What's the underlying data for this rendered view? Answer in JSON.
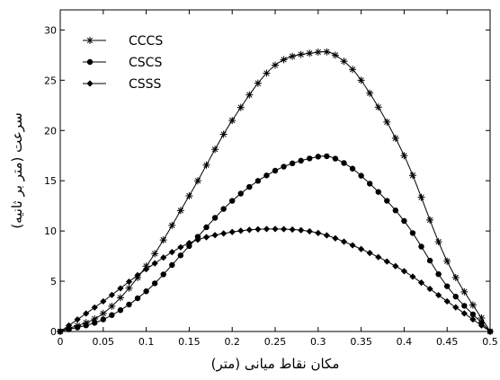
{
  "chart_data": {
    "type": "line",
    "xlabel": "مکان نقاط میانی (متر)",
    "ylabel": "سرعت (متر بر ثانیه)",
    "xlim": [
      0,
      0.5
    ],
    "ylim": [
      0,
      32
    ],
    "xticks": [
      "0",
      "0.05",
      "0.1",
      "0.15",
      "0.2",
      "0.25",
      "0.3",
      "0.35",
      "0.4",
      "0.45",
      "0.5"
    ],
    "yticks": [
      "0",
      "5",
      "10",
      "15",
      "20",
      "25",
      "30"
    ],
    "legend_position": "top-left",
    "grid": false,
    "series": [
      {
        "name": "CCCS",
        "marker": "asterisk",
        "x": [
          0,
          0.05,
          0.1,
          0.15,
          0.2,
          0.25,
          0.3,
          0.32,
          0.35,
          0.4,
          0.45,
          0.5
        ],
        "y": [
          0,
          1.8,
          6.5,
          13.5,
          21,
          26.5,
          27.8,
          27.5,
          25,
          17.5,
          7,
          0
        ]
      },
      {
        "name": "CSCS",
        "marker": "circle",
        "x": [
          0,
          0.05,
          0.1,
          0.15,
          0.2,
          0.25,
          0.3,
          0.32,
          0.35,
          0.4,
          0.45,
          0.5
        ],
        "y": [
          0,
          1.2,
          4,
          8.5,
          13,
          16,
          17.4,
          17.2,
          15.5,
          11,
          4.5,
          0
        ]
      },
      {
        "name": "CSSS",
        "marker": "diamond",
        "x": [
          0,
          0.05,
          0.1,
          0.15,
          0.2,
          0.25,
          0.3,
          0.35,
          0.4,
          0.45,
          0.5
        ],
        "y": [
          0,
          3,
          6.2,
          8.8,
          9.9,
          10.2,
          9.8,
          8.2,
          6,
          3,
          0
        ]
      }
    ]
  }
}
